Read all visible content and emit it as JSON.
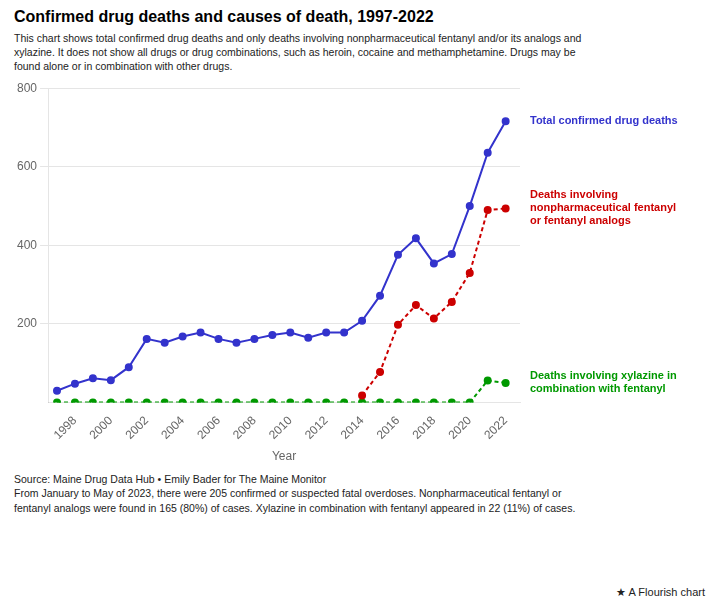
{
  "chart_data": {
    "type": "line",
    "title": "Confirmed drug deaths and causes of death, 1997-2022",
    "subtitle": "This chart shows total confirmed drug deaths and only deaths involving nonpharmaceutical fentanyl and/or its analogs and\nxylazine. It does not show all drugs or drug combinations, such as heroin, cocaine and methamphetamine. Drugs may be\nfound alone or in combination with other drugs.",
    "xlabel": "Year",
    "x": [
      1997,
      1998,
      1999,
      2000,
      2001,
      2002,
      2003,
      2004,
      2005,
      2006,
      2007,
      2008,
      2009,
      2010,
      2011,
      2012,
      2013,
      2014,
      2015,
      2016,
      2017,
      2018,
      2019,
      2020,
      2021,
      2022
    ],
    "series": [
      {
        "name": "Total confirmed drug deaths",
        "color": "#3333cc",
        "marker": "circle",
        "line_style": "solid",
        "values": [
          30,
          48,
          62,
          57,
          90,
          162,
          152,
          168,
          178,
          162,
          152,
          162,
          172,
          178,
          165,
          178,
          178,
          208,
          272,
          376,
          418,
          354,
          378,
          500,
          636,
          716
        ]
      },
      {
        "name": "Deaths involving\nnonpharmaceutical fentanyl\nor fentanyl analogs",
        "color": "#cc0000",
        "marker": "circle",
        "line_style": "dashed",
        "values": [
          null,
          null,
          null,
          null,
          null,
          null,
          null,
          null,
          null,
          null,
          null,
          null,
          null,
          null,
          null,
          null,
          null,
          18,
          78,
          198,
          248,
          214,
          256,
          330,
          490,
          494
        ]
      },
      {
        "name": "Deaths involving xylazine in\ncombination with fentanyl",
        "color": "#009900",
        "marker": "circle",
        "line_style": "dashed",
        "values": [
          0,
          0,
          0,
          0,
          0,
          0,
          0,
          0,
          0,
          0,
          0,
          0,
          0,
          0,
          0,
          0,
          0,
          0,
          0,
          0,
          0,
          0,
          0,
          0,
          56,
          50
        ]
      }
    ],
    "xlim": [
      1996.5,
      2022.8
    ],
    "xticks": [
      1998,
      2000,
      2002,
      2004,
      2006,
      2008,
      2010,
      2012,
      2014,
      2016,
      2018,
      2020,
      2022
    ],
    "ylim": [
      0,
      800
    ],
    "yticks": [
      200,
      400,
      600,
      800
    ],
    "grid": true,
    "annotations": [
      "Source: Maine Drug Data Hub • Emily Bader for The Maine Monitor",
      "From January to May of 2023, there were 205 confirmed or suspected fatal overdoses. Nonpharmaceutical fentanyl or",
      "fentanyl analogs were found in 165 (80%) of cases. Xylazine in combination with fentanyl appeared in 22 (11%) of cases.",
      "★ A Flourish chart"
    ]
  }
}
